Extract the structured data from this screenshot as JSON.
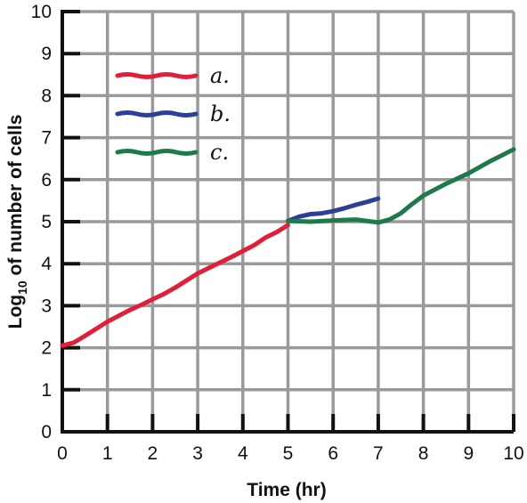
{
  "chart_data": {
    "type": "line",
    "title": "",
    "xlabel": "Time (hr)",
    "ylabel_main": "Log",
    "ylabel_sub": "10",
    "ylabel_rest": " of number of cells",
    "xlim": [
      0,
      10
    ],
    "ylim": [
      0,
      10
    ],
    "xticks": [
      "0",
      "1",
      "2",
      "3",
      "4",
      "5",
      "6",
      "7",
      "8",
      "9",
      "10"
    ],
    "yticks": [
      "0",
      "1",
      "2",
      "3",
      "4",
      "5",
      "6",
      "7",
      "8",
      "9",
      "10"
    ],
    "grid": true,
    "legend_placement": "top-left",
    "legend": [
      {
        "label": "a.",
        "color": "#e0203a"
      },
      {
        "label": "b.",
        "color": "#2b3f9a"
      },
      {
        "label": "c.",
        "color": "#1e7a4a"
      }
    ],
    "series": [
      {
        "name": "a.",
        "color": "#e0203a",
        "x": [
          0,
          0.25,
          0.5,
          0.75,
          1,
          1.25,
          1.5,
          1.75,
          2,
          2.25,
          2.5,
          2.75,
          3,
          3.25,
          3.5,
          3.75,
          4,
          4.25,
          4.5,
          4.75,
          5
        ],
        "y": [
          2.05,
          2.12,
          2.28,
          2.45,
          2.62,
          2.76,
          2.9,
          3.02,
          3.15,
          3.28,
          3.43,
          3.6,
          3.77,
          3.9,
          4.03,
          4.16,
          4.3,
          4.44,
          4.62,
          4.75,
          4.92
        ]
      },
      {
        "name": "b.",
        "color": "#2b3f9a",
        "x": [
          5,
          5.25,
          5.5,
          5.75,
          6,
          6.25,
          6.5,
          6.75,
          7
        ],
        "y": [
          5.02,
          5.12,
          5.18,
          5.2,
          5.25,
          5.32,
          5.4,
          5.47,
          5.55
        ]
      },
      {
        "name": "c.",
        "color": "#1e7a4a",
        "x": [
          5,
          5.5,
          6,
          6.5,
          7,
          7.25,
          7.5,
          7.75,
          8,
          8.5,
          9,
          9.5,
          10
        ],
        "y": [
          5.02,
          5.0,
          5.03,
          5.05,
          4.98,
          5.05,
          5.2,
          5.42,
          5.62,
          5.9,
          6.15,
          6.45,
          6.72
        ]
      }
    ]
  }
}
